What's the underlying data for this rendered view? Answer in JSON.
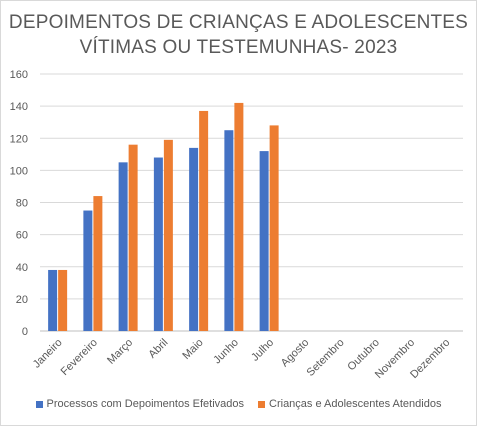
{
  "title_line1": "DEPOIMENTOS DE CRIANÇAS E ADOLESCENTES",
  "title_line2": "VÍTIMAS OU TESTEMUNHAS- 2023",
  "chart_data": {
    "type": "bar",
    "title": "DEPOIMENTOS DE CRIANÇAS E ADOLESCENTES VÍTIMAS OU TESTEMUNHAS- 2023",
    "xlabel": "",
    "ylabel": "",
    "categories": [
      "Janeiro",
      "Fevereiro",
      "Março",
      "Abril",
      "Maio",
      "Junho",
      "Julho",
      "Agosto",
      "Setembro",
      "Outubro",
      "Novembro",
      "Dezembro"
    ],
    "series": [
      {
        "name": "Processos com Depoimentos Efetivados",
        "color": "#4472C4",
        "values": [
          38,
          75,
          105,
          108,
          114,
          125,
          112,
          null,
          null,
          null,
          null,
          null
        ]
      },
      {
        "name": "Crianças e Adolescentes Atendidos",
        "color": "#ED7D31",
        "values": [
          38,
          84,
          116,
          119,
          137,
          142,
          128,
          null,
          null,
          null,
          null,
          null
        ]
      }
    ],
    "ylim": [
      0,
      160
    ],
    "yticks": [
      0,
      20,
      40,
      60,
      80,
      100,
      120,
      140,
      160
    ],
    "grid": true,
    "legend": "bottom"
  }
}
